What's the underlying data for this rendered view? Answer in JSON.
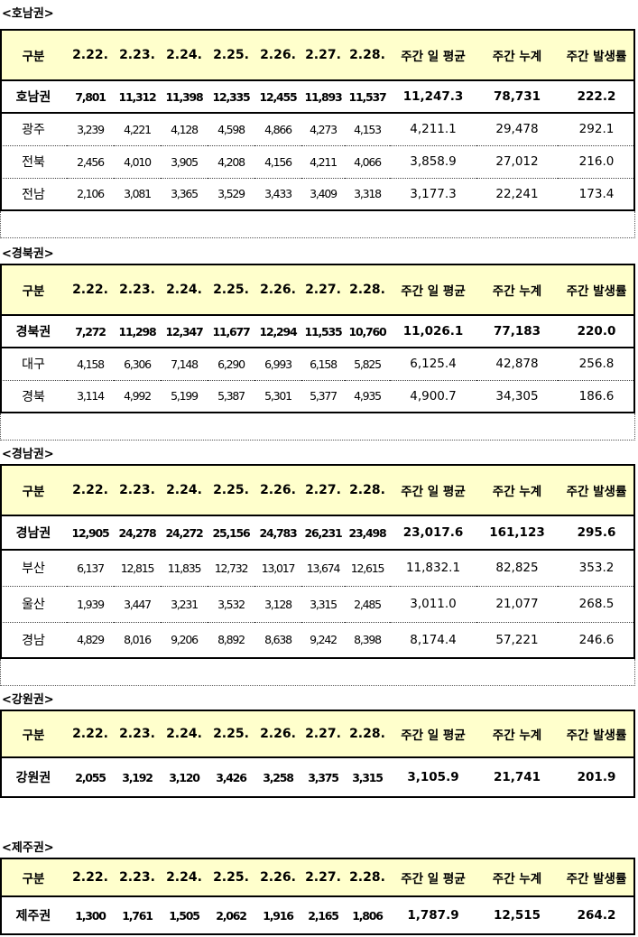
{
  "headers": [
    "구분",
    "2.22.",
    "2.23.",
    "2.24.",
    "2.25.",
    "2.26.",
    "2.27.",
    "2.28.",
    "주간 일 평균",
    "주간 누계",
    "주간 발생률"
  ],
  "regions": [
    {
      "title": "<호남권>",
      "rows": [
        [
          "호남권",
          "7,801",
          "11,312",
          "11,398",
          "12,335",
          "12,455",
          "11,893",
          "11,537",
          "11,247.3",
          "78,731",
          "222.2"
        ],
        [
          "광주",
          "3,239",
          "4,221",
          "4,128",
          "4,598",
          "4,866",
          "4,273",
          "4,153",
          "4,211.1",
          "29,478",
          "292.1"
        ],
        [
          "전북",
          "2,456",
          "4,010",
          "3,905",
          "4,208",
          "4,156",
          "4,211",
          "4,066",
          "3,858.9",
          "27,012",
          "216.0"
        ],
        [
          "전남",
          "2,106",
          "3,081",
          "3,365",
          "3,529",
          "3,433",
          "3,409",
          "3,318",
          "3,177.3",
          "22,241",
          "173.4"
        ]
      ]
    },
    {
      "title": "<경북권>",
      "rows": [
        [
          "경북권",
          "7,272",
          "11,298",
          "12,347",
          "11,677",
          "12,294",
          "11,535",
          "10,760",
          "11,026.1",
          "77,183",
          "220.0"
        ],
        [
          "대구",
          "4,158",
          "6,306",
          "7,148",
          "6,290",
          "6,993",
          "6,158",
          "5,825",
          "6,125.4",
          "42,878",
          "256.8"
        ],
        [
          "경북",
          "3,114",
          "4,992",
          "5,199",
          "5,387",
          "5,301",
          "5,377",
          "4,935",
          "4,900.7",
          "34,305",
          "186.6"
        ]
      ]
    },
    {
      "title": "<경남권>",
      "rows": [
        [
          "경남권",
          "12,905",
          "24,278",
          "24,272",
          "25,156",
          "24,783",
          "26,231",
          "23,498",
          "23,017.6",
          "161,123",
          "295.6"
        ],
        [
          "부산",
          "6,137",
          "12,815",
          "11,835",
          "12,732",
          "13,017",
          "13,674",
          "12,615",
          "11,832.1",
          "82,825",
          "353.2"
        ],
        [
          "울산",
          "1,939",
          "3,447",
          "3,231",
          "3,532",
          "3,128",
          "3,315",
          "2,485",
          "3,011.0",
          "21,077",
          "268.5"
        ],
        [
          "경남",
          "4,829",
          "8,016",
          "9,206",
          "8,892",
          "8,638",
          "9,242",
          "8,398",
          "8,174.4",
          "57,221",
          "246.6"
        ]
      ]
    },
    {
      "title": "<강원권>",
      "rows": [
        [
          "강원권",
          "2,055",
          "3,192",
          "3,120",
          "3,426",
          "3,258",
          "3,375",
          "3,315",
          "3,105.9",
          "21,741",
          "201.9"
        ]
      ]
    },
    {
      "title": "<제주권>",
      "rows": [
        [
          "제주권",
          "1,300",
          "1,761",
          "1,505",
          "2,062",
          "1,916",
          "2,165",
          "1,806",
          "1,787.9",
          "12,515",
          "264.2"
        ]
      ]
    }
  ]
}
